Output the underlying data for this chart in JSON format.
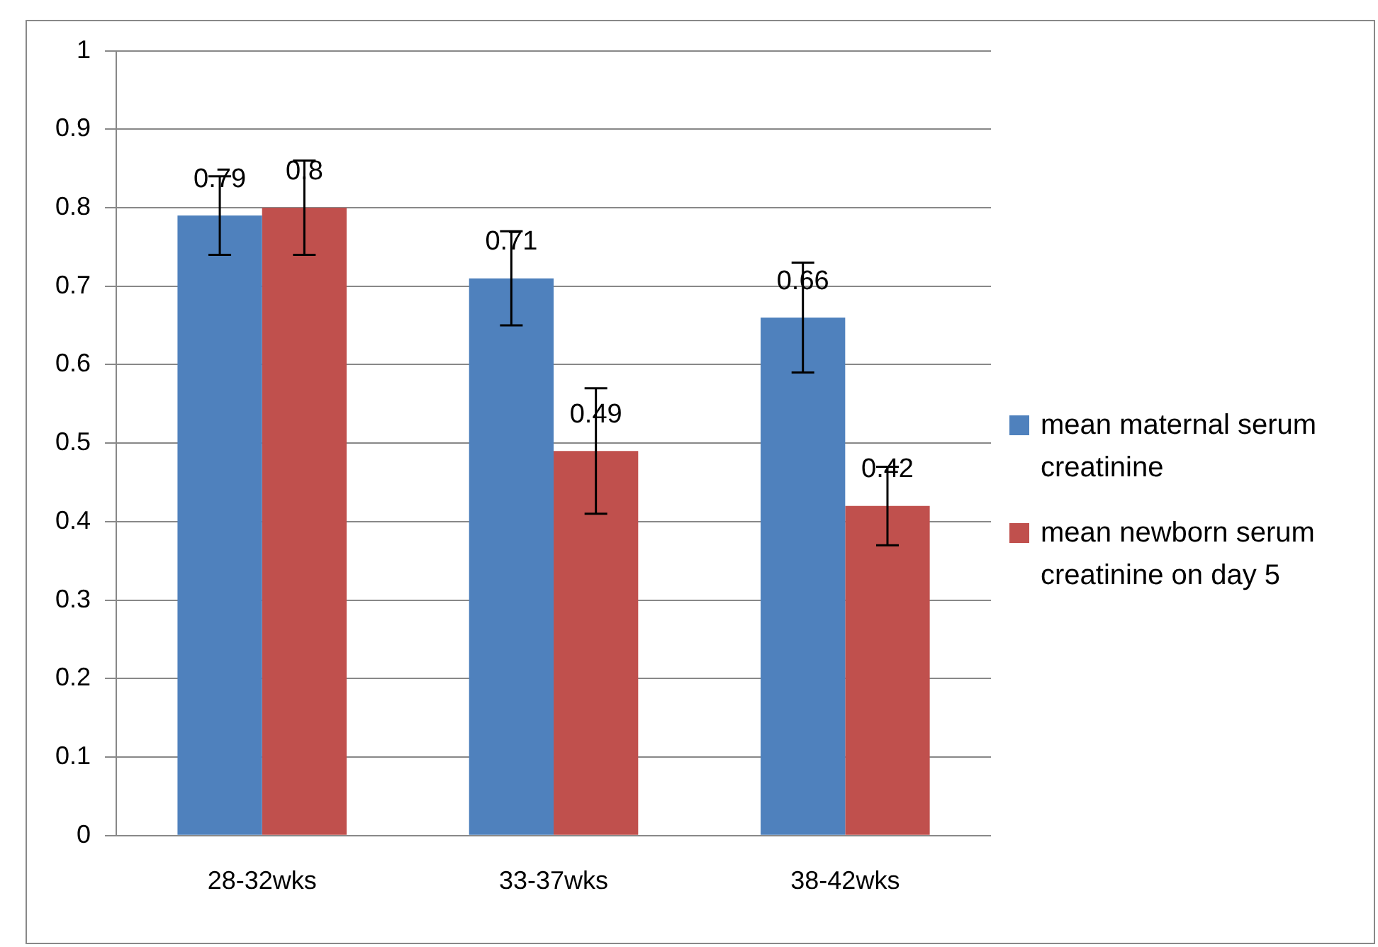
{
  "chart_data": {
    "type": "bar",
    "categories": [
      "28-32wks",
      "33-37wks",
      "38-42wks"
    ],
    "series": [
      {
        "name": "mean maternal serum creatinine",
        "color": "#4f81bd",
        "values": [
          0.79,
          0.71,
          0.66
        ],
        "errors": [
          0.05,
          0.06,
          0.07
        ]
      },
      {
        "name": "mean newborn serum creatinine on day 5",
        "color": "#c0504d",
        "values": [
          0.8,
          0.49,
          0.42
        ],
        "errors": [
          0.06,
          0.08,
          0.05
        ]
      }
    ],
    "ylim": [
      0,
      1
    ],
    "yticks": [
      0,
      0.1,
      0.2,
      0.3,
      0.4,
      0.5,
      0.6,
      0.7,
      0.8,
      0.9,
      1
    ],
    "grid": "y",
    "legend": "right",
    "data_labels": true
  }
}
